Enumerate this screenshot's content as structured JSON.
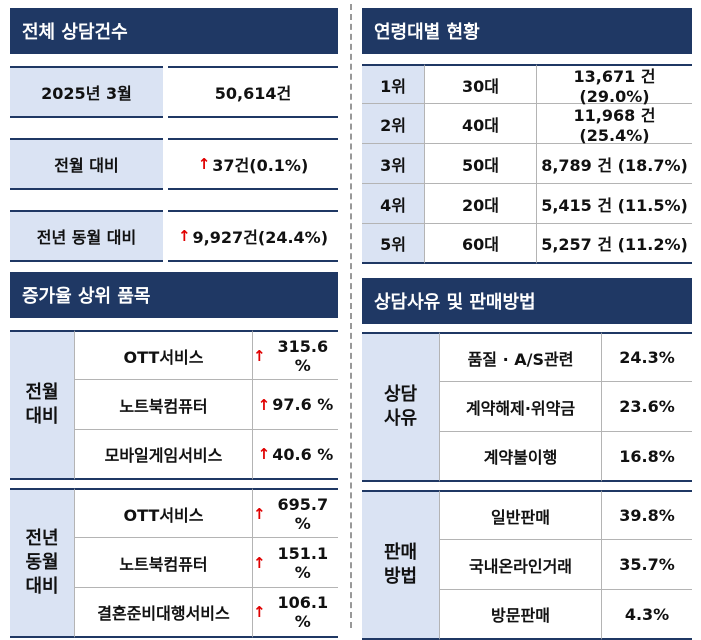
{
  "total": {
    "title": "전체 상담건수",
    "rows": [
      {
        "label": "2025년 3월",
        "value": "50,614건"
      },
      {
        "label": "전월 대비",
        "value": "37건(0.1%)"
      },
      {
        "label": "전년 동월 대비",
        "value": "9,927건(24.4%)"
      }
    ]
  },
  "increase": {
    "title": "증가율 상위 품목",
    "groups": [
      {
        "label": "전월 대비",
        "items": [
          {
            "name": "OTT서비스",
            "value": "315.6 %"
          },
          {
            "name": "노트북컴퓨터",
            "value": "97.6 %"
          },
          {
            "name": "모바일게임서비스",
            "value": "40.6 %"
          }
        ]
      },
      {
        "label": "전년 동월 대비",
        "items": [
          {
            "name": "OTT서비스",
            "value": "695.7 %"
          },
          {
            "name": "노트북컴퓨터",
            "value": "151.1 %"
          },
          {
            "name": "결혼준비대행서비스",
            "value": "106.1 %"
          }
        ]
      }
    ]
  },
  "age": {
    "title": "연령대별 현황",
    "rows": [
      {
        "rank": "1위",
        "age": "30대",
        "count": "13,671 건 (29.0%)"
      },
      {
        "rank": "2위",
        "age": "40대",
        "count": "11,968 건 (25.4%)"
      },
      {
        "rank": "3위",
        "age": "50대",
        "count": "8,789 건 (18.7%)"
      },
      {
        "rank": "4위",
        "age": "20대",
        "count": "5,415 건 (11.5%)"
      },
      {
        "rank": "5위",
        "age": "60대",
        "count": "5,257 건 (11.2%)"
      }
    ]
  },
  "reason": {
    "title": "상담사유 및 판매방법",
    "groups": [
      {
        "label": "상담 사유",
        "items": [
          {
            "name": "품질 · A/S관련",
            "value": "24.3%"
          },
          {
            "name": "계약해제·위약금",
            "value": "23.6%"
          },
          {
            "name": "계약불이행",
            "value": "16.8%"
          }
        ]
      },
      {
        "label": "판매 방법",
        "items": [
          {
            "name": "일반판매",
            "value": "39.8%"
          },
          {
            "name": "국내온라인거래",
            "value": "35.7%"
          },
          {
            "name": "방문판매",
            "value": "4.3%"
          }
        ]
      }
    ]
  }
}
